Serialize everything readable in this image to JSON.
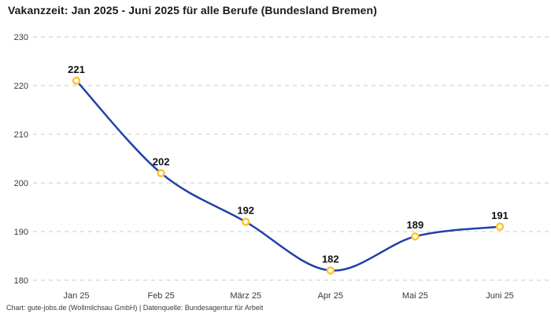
{
  "header": {
    "title": "Vakanzzeit: Jan 2025 - Juni 2025 für alle Berufe (Bundesland Bremen)"
  },
  "footer": {
    "credit": "Chart: gute-jobs.de (Wollmilchsau GmbH) | Datenquelle: Bundesagentur für Arbeit"
  },
  "chart_data": {
    "type": "line",
    "title": "Vakanzzeit: Jan 2025 - Juni 2025 für alle Berufe (Bundesland Bremen)",
    "categories": [
      "Jan 25",
      "Feb 25",
      "März 25",
      "Apr 25",
      "Mai 25",
      "Juni 25"
    ],
    "values": [
      221,
      202,
      192,
      182,
      189,
      191
    ],
    "data_labels": [
      "221",
      "202",
      "192",
      "182",
      "189",
      "191"
    ],
    "yticks": [
      180,
      190,
      200,
      210,
      220,
      230
    ],
    "ylim": [
      180,
      230
    ],
    "xlabel": "",
    "ylabel": "",
    "grid": "horizontal-dashed",
    "legend": "none",
    "line_style": "smooth-spline",
    "marker_style": "ring",
    "colors": {
      "line": "#2240a8",
      "marker_stroke": "#ffc42e",
      "marker_fill": "#ffffff",
      "grid": "#c9c9c9",
      "tick_label": "#3b3b3b",
      "value_label": "#111111",
      "background": "#ffffff"
    }
  }
}
